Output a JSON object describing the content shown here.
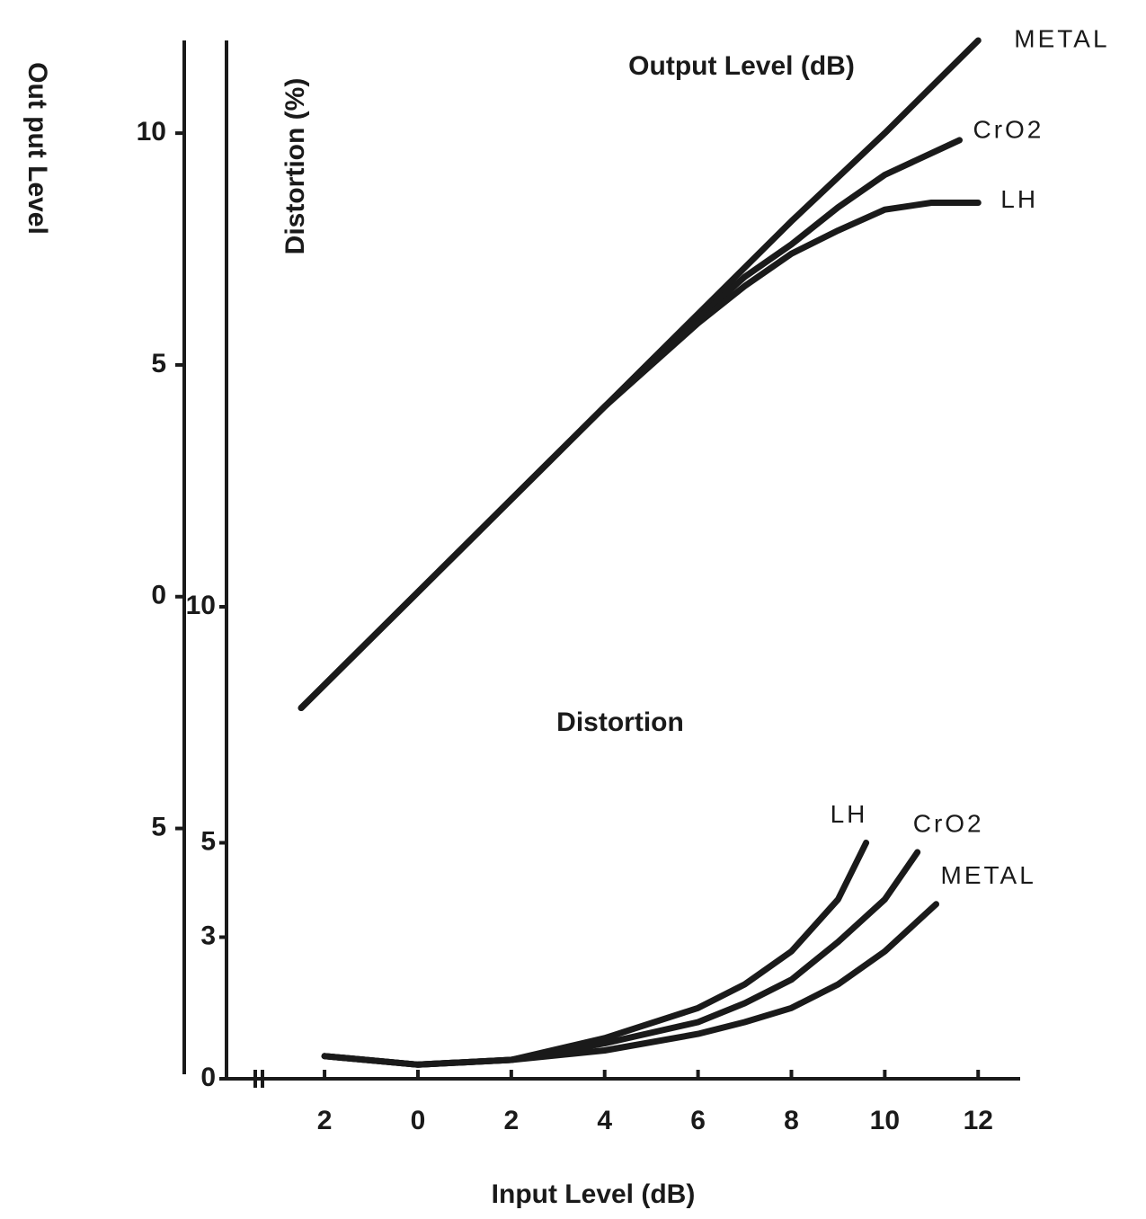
{
  "chart_data": {
    "type": "line",
    "ylabel": "Out put Level",
    "y2label": "Distortion (%)",
    "xlabel": "Input Level (dB)",
    "annotations": [
      "Output Level (dB)",
      "Distortion"
    ],
    "xlim": [
      -4.1,
      12.9
    ],
    "xticks": [
      {
        "value": -2,
        "label": "2"
      },
      0,
      2,
      4,
      6,
      8,
      10,
      12
    ],
    "ylim": [
      -10.4,
      12
    ],
    "yticks": [
      10,
      5,
      0,
      {
        "value": -5,
        "label": "5"
      }
    ],
    "y2lim": [
      0,
      22
    ],
    "y2ticks": [
      10,
      5,
      3,
      0
    ],
    "series": [
      {
        "name": "METAL",
        "color": "#1a1a1a",
        "axis": "y",
        "x": [
          -2.5,
          0,
          2,
          4,
          6,
          8,
          10,
          12
        ],
        "values": [
          -2.4,
          0.1,
          2.1,
          4.1,
          6.1,
          8.1,
          10.0,
          12.0
        ]
      },
      {
        "name": "CrO2",
        "color": "#1a1a1a",
        "axis": "y",
        "x": [
          -2.5,
          0,
          2,
          4,
          6,
          7,
          8,
          9,
          10,
          11.6
        ],
        "values": [
          -2.4,
          0.1,
          2.1,
          4.1,
          6.0,
          6.9,
          7.6,
          8.4,
          9.1,
          9.85
        ]
      },
      {
        "name": "LH",
        "color": "#1a1a1a",
        "axis": "y",
        "x": [
          -2.5,
          0,
          2,
          4,
          6,
          7,
          8,
          9,
          10,
          11,
          12
        ],
        "values": [
          -2.4,
          0.1,
          2.1,
          4.1,
          5.9,
          6.7,
          7.4,
          7.9,
          8.35,
          8.5,
          8.5
        ]
      },
      {
        "name": "LH",
        "color": "#1a1a1a",
        "axis": "y2",
        "x": [
          -2,
          0,
          2,
          4,
          6,
          7,
          8,
          9,
          9.6
        ],
        "values": [
          0.48,
          0.3,
          0.4,
          0.86,
          1.5,
          2.0,
          2.7,
          3.8,
          5.0
        ]
      },
      {
        "name": "CrO2",
        "color": "#1a1a1a",
        "axis": "y2",
        "x": [
          -2,
          0,
          2,
          4,
          6,
          7,
          8,
          9,
          10,
          10.7
        ],
        "values": [
          0.48,
          0.3,
          0.4,
          0.75,
          1.2,
          1.6,
          2.1,
          2.9,
          3.8,
          4.8
        ]
      },
      {
        "name": "METAL",
        "color": "#1a1a1a",
        "axis": "y2",
        "x": [
          -2,
          0,
          2,
          4,
          6,
          7,
          8,
          9,
          10,
          11.1
        ],
        "values": [
          0.48,
          0.3,
          0.4,
          0.6,
          0.95,
          1.2,
          1.5,
          2.0,
          2.7,
          3.7
        ]
      }
    ]
  }
}
